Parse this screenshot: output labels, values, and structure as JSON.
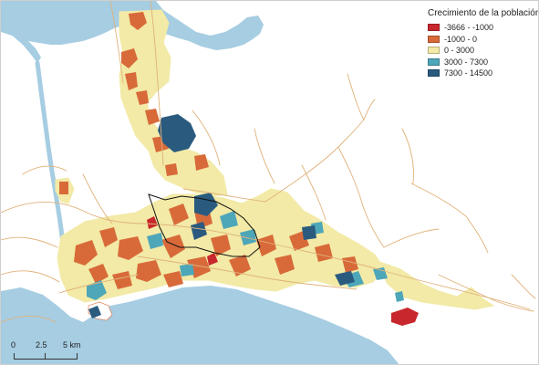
{
  "colors": {
    "sea": "#a6cde2",
    "land": "#ffffff",
    "roads": "#e0b27a"
  },
  "legend": {
    "title": "Crecimiento de la población",
    "items": [
      {
        "label": "-3666 - -1000",
        "color": "#c8272d"
      },
      {
        "label": "-1000 - 0",
        "color": "#d86a3a"
      },
      {
        "label": "0 - 3000",
        "color": "#f2eaa6"
      },
      {
        "label": "3000 - 7300",
        "color": "#4ea6b9"
      },
      {
        "label": "7300 - 14500",
        "color": "#2a5b7f"
      }
    ]
  },
  "scale": {
    "zero": "0",
    "mid": "2.5",
    "end": "5 km"
  }
}
